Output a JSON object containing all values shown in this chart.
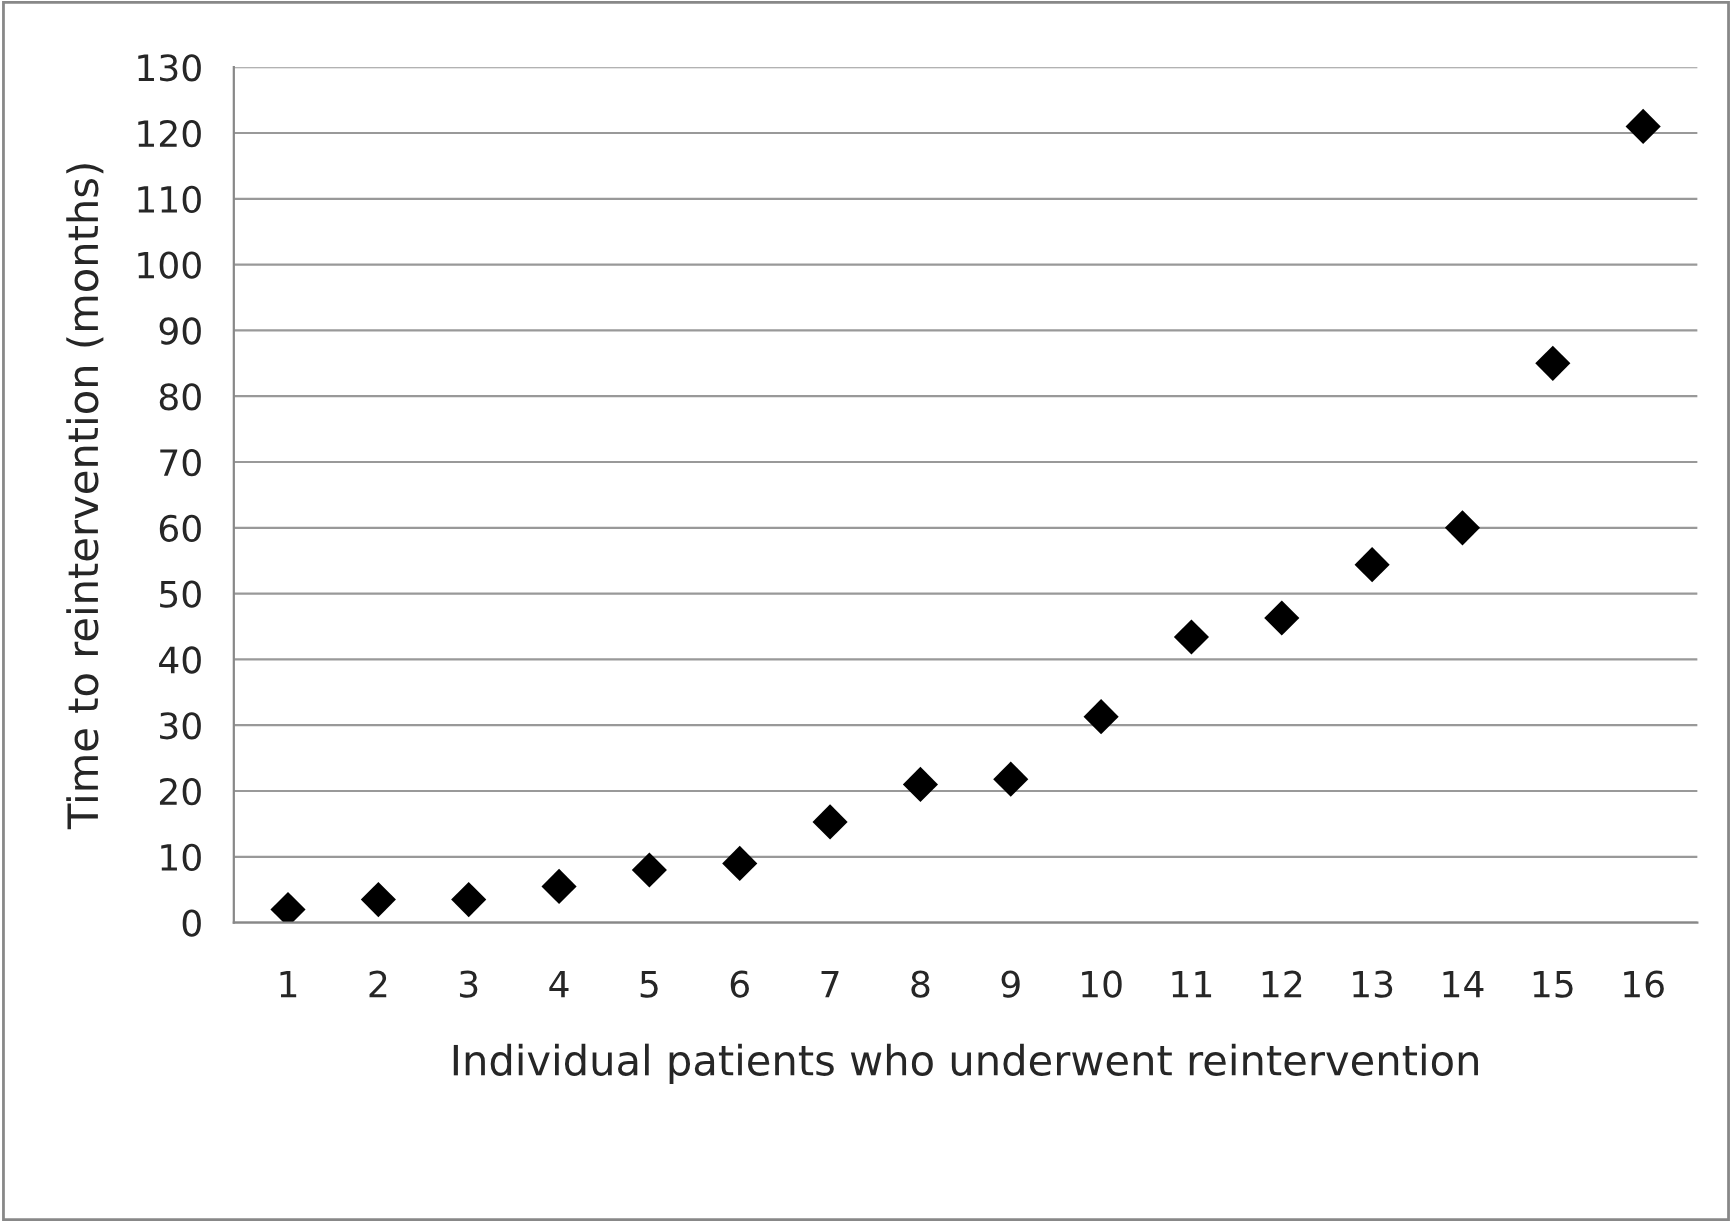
{
  "chart_data": {
    "type": "scatter",
    "xlabel": "Individual patients who underwent reintervention",
    "ylabel": "Time to reintervention (months)",
    "categories": [
      "1",
      "2",
      "3",
      "4",
      "5",
      "6",
      "7",
      "8",
      "9",
      "10",
      "11",
      "12",
      "13",
      "14",
      "15",
      "16"
    ],
    "series": [
      {
        "color": "#000000",
        "values": [
          2,
          3.5,
          3.5,
          5.5,
          8,
          9,
          15.3,
          21,
          21.8,
          31.3,
          43.4,
          46.3,
          54.4,
          60,
          85,
          121
        ]
      }
    ],
    "ylim": [
      0,
      130
    ],
    "yticks": [
      0,
      10,
      20,
      30,
      40,
      50,
      60,
      70,
      80,
      90,
      100,
      110,
      120,
      130
    ],
    "grid": "y",
    "marker": "diamond",
    "legend": false
  }
}
